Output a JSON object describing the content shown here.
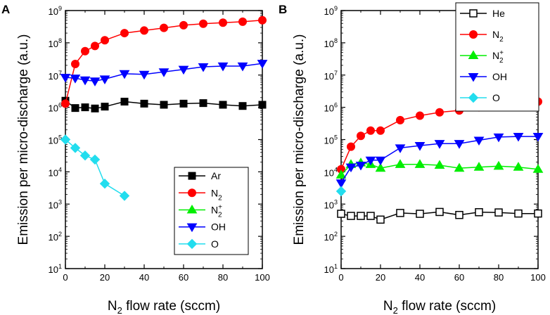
{
  "figure": {
    "ylabel": "Emission per micro-discharge (a.u.)",
    "xlabel_prefix": "N",
    "xlabel_sub": "2",
    "xlabel_suffix": " flow rate (sccm)"
  },
  "chart_data": [
    {
      "type": "line",
      "panel": "A",
      "xlim": [
        0,
        100
      ],
      "ylim": [
        10,
        1000000000
      ],
      "yscale": "log",
      "x_ticks": [
        0,
        20,
        40,
        60,
        80,
        100
      ],
      "y_ticks": [
        {
          "base": "10",
          "exp": "1"
        },
        {
          "base": "10",
          "exp": "2"
        },
        {
          "base": "10",
          "exp": "3"
        },
        {
          "base": "10",
          "exp": "4"
        },
        {
          "base": "10",
          "exp": "5"
        },
        {
          "base": "10",
          "exp": "6"
        },
        {
          "base": "10",
          "exp": "7"
        },
        {
          "base": "10",
          "exp": "8"
        },
        {
          "base": "10",
          "exp": "9"
        }
      ],
      "legend_position": "bottom-right",
      "series": [
        {
          "name": "Ar",
          "sub": "",
          "sup": "",
          "color": "#000000",
          "marker": "square",
          "filled": true,
          "x": [
            0,
            5,
            10,
            15,
            20,
            30,
            40,
            50,
            60,
            70,
            80,
            90,
            100
          ],
          "values": [
            1600000,
            950000,
            1000000,
            920000,
            1050000,
            1500000,
            1300000,
            1200000,
            1300000,
            1350000,
            1200000,
            1100000,
            1200000
          ]
        },
        {
          "name": "N",
          "sub": "2",
          "sup": "",
          "color": "#ff0000",
          "marker": "circle",
          "filled": true,
          "x": [
            0,
            5,
            10,
            15,
            20,
            30,
            40,
            50,
            60,
            70,
            80,
            90,
            100
          ],
          "values": [
            1300000,
            22000000,
            55000000,
            80000000,
            120000000,
            200000000,
            240000000,
            290000000,
            350000000,
            390000000,
            420000000,
            450000000,
            500000000
          ]
        },
        {
          "name": "N",
          "sub": "2",
          "sup": "+",
          "color": "#00ee00",
          "marker": "triangle-up",
          "filled": true,
          "x": [],
          "values": []
        },
        {
          "name": "OH",
          "sub": "",
          "sup": "",
          "color": "#0000ff",
          "marker": "triangle-down",
          "filled": true,
          "x": [
            0,
            5,
            10,
            15,
            20,
            30,
            40,
            50,
            60,
            70,
            80,
            90,
            100
          ],
          "values": [
            8500000,
            8000000,
            7000000,
            6500000,
            7500000,
            11000000,
            10500000,
            12500000,
            15000000,
            18000000,
            19000000,
            19000000,
            23000000
          ]
        },
        {
          "name": "O",
          "sub": "",
          "sup": "",
          "color": "#22ddee",
          "marker": "diamond",
          "filled": true,
          "x": [
            0,
            5,
            10,
            15,
            20,
            30
          ],
          "values": [
            100000,
            55000,
            32000,
            24000,
            4300,
            1800
          ]
        }
      ]
    },
    {
      "type": "line",
      "panel": "B",
      "xlim": [
        0,
        100
      ],
      "ylim": [
        10,
        1000000000
      ],
      "yscale": "log",
      "x_ticks": [
        0,
        20,
        40,
        60,
        80,
        100
      ],
      "y_ticks": [
        {
          "base": "10",
          "exp": "1"
        },
        {
          "base": "10",
          "exp": "2"
        },
        {
          "base": "10",
          "exp": "3"
        },
        {
          "base": "10",
          "exp": "4"
        },
        {
          "base": "10",
          "exp": "5"
        },
        {
          "base": "10",
          "exp": "6"
        },
        {
          "base": "10",
          "exp": "7"
        },
        {
          "base": "10",
          "exp": "8"
        },
        {
          "base": "10",
          "exp": "9"
        }
      ],
      "legend_position": "top-right",
      "series": [
        {
          "name": "He",
          "sub": "",
          "sup": "",
          "color": "#000000",
          "marker": "square",
          "filled": false,
          "x": [
            0,
            5,
            10,
            15,
            20,
            30,
            40,
            50,
            60,
            70,
            80,
            90,
            100
          ],
          "values": [
            500,
            430,
            430,
            430,
            330,
            530,
            500,
            570,
            460,
            560,
            550,
            510,
            510
          ]
        },
        {
          "name": "N",
          "sub": "2",
          "sup": "",
          "color": "#ff0000",
          "marker": "circle",
          "filled": true,
          "x": [
            0,
            5,
            10,
            15,
            20,
            30,
            40,
            50,
            60,
            70,
            80,
            90,
            100
          ],
          "values": [
            12000,
            60000,
            130000,
            190000,
            190000,
            400000,
            550000,
            700000,
            800000,
            1000000,
            1400000,
            1500000,
            1500000
          ]
        },
        {
          "name": "N",
          "sub": "2",
          "sup": "+",
          "color": "#00ee00",
          "marker": "triangle-up",
          "filled": true,
          "x": [
            0,
            5,
            10,
            15,
            20,
            30,
            40,
            50,
            60,
            70,
            80,
            90,
            100
          ],
          "values": [
            8000,
            17000,
            19000,
            17000,
            13000,
            17000,
            17000,
            16000,
            13000,
            14000,
            15000,
            14000,
            12000
          ]
        },
        {
          "name": "OH",
          "sub": "",
          "sup": "",
          "color": "#0000ff",
          "marker": "triangle-down",
          "filled": true,
          "x": [
            0,
            5,
            10,
            15,
            20,
            30,
            40,
            50,
            60,
            70,
            80,
            90,
            100
          ],
          "values": [
            4500,
            14000,
            16000,
            23000,
            23000,
            55000,
            65000,
            75000,
            75000,
            95000,
            120000,
            125000,
            125000
          ]
        },
        {
          "name": "O",
          "sub": "",
          "sup": "",
          "color": "#22ddee",
          "marker": "diamond",
          "filled": true,
          "x": [
            0
          ],
          "values": [
            2500
          ]
        }
      ]
    }
  ]
}
